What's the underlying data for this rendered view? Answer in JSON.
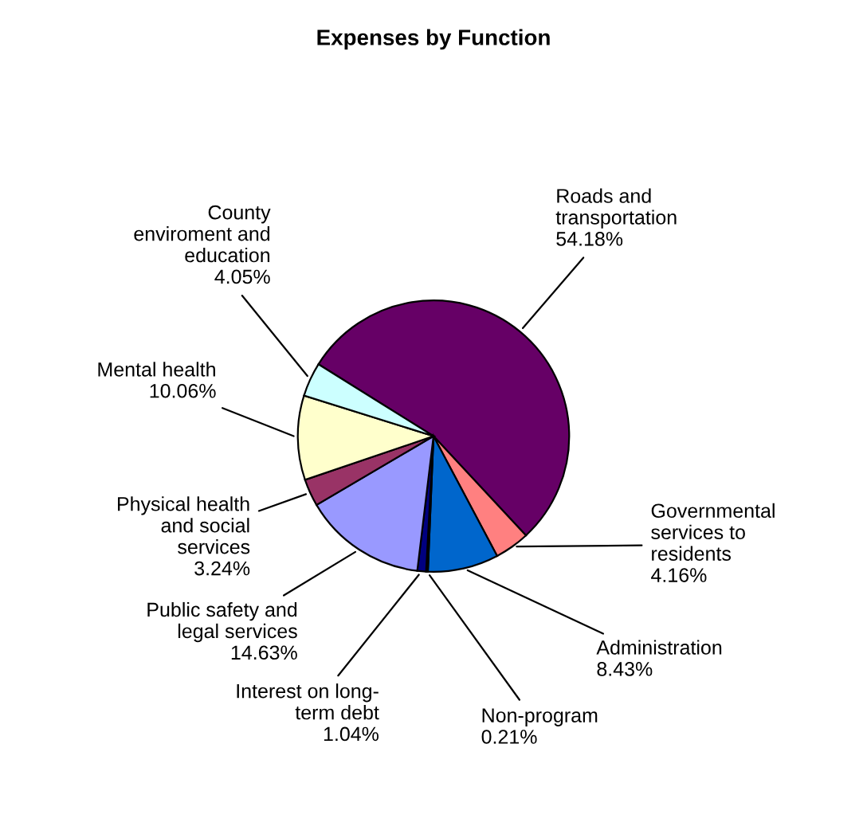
{
  "chart_data": {
    "type": "pie",
    "title": "Expenses by Function",
    "categories": [
      "Roads and\ntransportation",
      "Governmental\nservices to\nresidents",
      "Administration",
      "Non-program",
      "Interest on long-\nterm debt",
      "Public safety and\nlegal services",
      "Physical health\nand social\nservices",
      "Mental health",
      "County\nenviroment and\neducation"
    ],
    "values": [
      54.18,
      4.16,
      8.43,
      0.21,
      1.04,
      14.63,
      3.24,
      10.06,
      4.05
    ],
    "value_labels": [
      "54.18%",
      "4.16%",
      "8.43%",
      "0.21%",
      "1.04%",
      "14.63%",
      "3.24%",
      "10.06%",
      "4.05%"
    ],
    "colors": [
      "#660066",
      "#ff8080",
      "#0066cc",
      "#ccccff",
      "#000080",
      "#9999ff",
      "#993366",
      "#ffffcc",
      "#ccffff"
    ],
    "legend": false
  }
}
